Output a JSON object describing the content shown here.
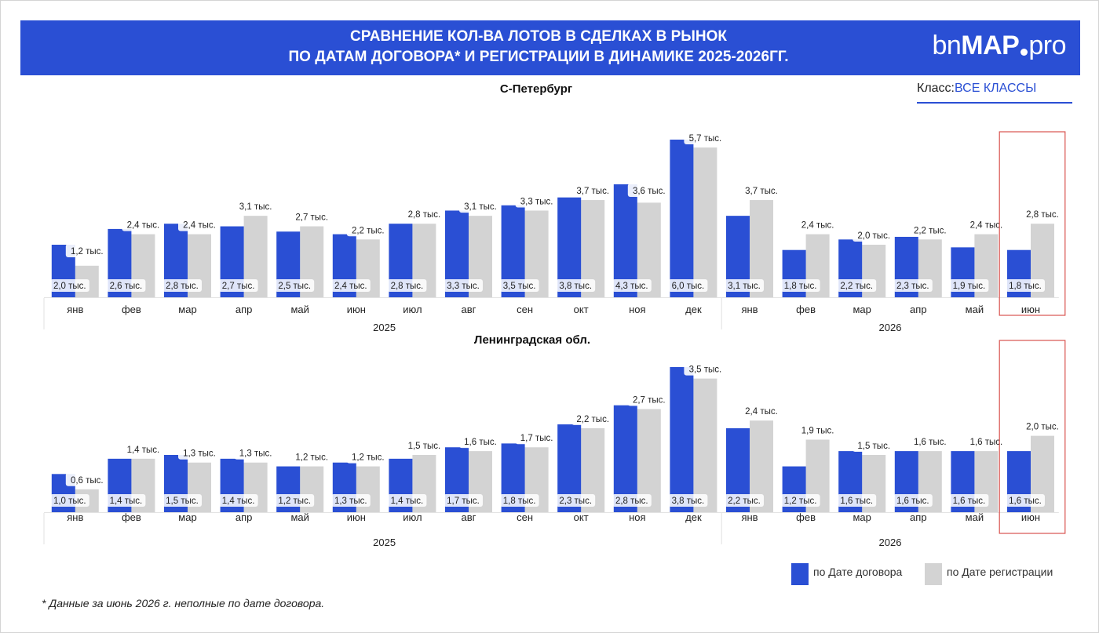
{
  "header": {
    "title_line1": "СРАВНЕНИЕ КОЛ-ВА ЛОТОВ В СДЕЛКАХ В РЫНОК",
    "title_line2": "ПО ДАТАМ ДОГОВОРА* И РЕГИСТРАЦИИ В ДИНАМИКЕ 2025-2026ГГ.",
    "logo_bn": "bn",
    "logo_map": "MAP",
    "logo_pro": "pro"
  },
  "filter": {
    "label": "Класс:",
    "value": "ВСЕ КЛАССЫ"
  },
  "legend": {
    "contract": "по Дате договора",
    "registration": "по Дате регистрации"
  },
  "footnote": "* Данные за июнь 2026 г. неполные по дате договора.",
  "colors": {
    "contract": "#2a4fd4",
    "registration": "#d3d3d3",
    "highlight": "#d9534f",
    "banner": "#2a4fd4"
  },
  "chart_data": [
    {
      "type": "bar",
      "title": "С-Петербург",
      "categories": [
        "янв",
        "фев",
        "мар",
        "апр",
        "май",
        "июн",
        "июл",
        "авг",
        "сен",
        "окт",
        "ноя",
        "дек",
        "янв",
        "фев",
        "мар",
        "апр",
        "май",
        "июн"
      ],
      "year_groups": [
        {
          "label": "2025",
          "count": 12
        },
        {
          "label": "2026",
          "count": 6
        }
      ],
      "highlight_category": 17,
      "series": [
        {
          "name": "по Дате договора",
          "values": [
            2.0,
            2.6,
            2.8,
            2.7,
            2.5,
            2.4,
            2.8,
            3.3,
            3.5,
            3.8,
            4.3,
            6.0,
            3.1,
            1.8,
            2.2,
            2.3,
            1.9,
            1.8
          ],
          "labels": [
            "2,0 тыс.",
            "2,6 тыс.",
            "2,8 тыс.",
            "2,7 тыс.",
            "2,5 тыс.",
            "2,4 тыс.",
            "2,8 тыс.",
            "3,3 тыс.",
            "3,5 тыс.",
            "3,8 тыс.",
            "4,3 тыс.",
            "6,0 тыс.",
            "3,1 тыс.",
            "1,8 тыс.",
            "2,2 тыс.",
            "2,3 тыс.",
            "1,9 тыс.",
            "1,8 тыс."
          ]
        },
        {
          "name": "по Дате регистрации",
          "values": [
            1.2,
            2.4,
            2.4,
            3.1,
            2.7,
            2.2,
            2.8,
            3.1,
            3.3,
            3.7,
            3.6,
            5.7,
            3.7,
            2.4,
            2.0,
            2.2,
            2.4,
            2.8
          ],
          "labels": [
            "1,2 тыс.",
            "2,4 тыс.",
            "2,4 тыс.",
            "3,1 тыс.",
            "2,7 тыс.",
            "2,2 тыс.",
            "2,8 тыс.",
            "3,1 тыс.",
            "3,3 тыс.",
            "3,7 тыс.",
            "3,6 тыс.",
            "5,7 тыс.",
            "3,7 тыс.",
            "2,4 тыс.",
            "2,0 тыс.",
            "2,2 тыс.",
            "2,4 тыс.",
            "2,8 тыс."
          ]
        }
      ],
      "ylim": [
        0,
        6.0
      ]
    },
    {
      "type": "bar",
      "title": "Ленинградская обл.",
      "categories": [
        "янв",
        "фев",
        "мар",
        "апр",
        "май",
        "июн",
        "июл",
        "авг",
        "сен",
        "окт",
        "ноя",
        "дек",
        "янв",
        "фев",
        "мар",
        "апр",
        "май",
        "июн"
      ],
      "year_groups": [
        {
          "label": "2025",
          "count": 12
        },
        {
          "label": "2026",
          "count": 6
        }
      ],
      "highlight_category": 17,
      "series": [
        {
          "name": "по Дате договора",
          "values": [
            1.0,
            1.4,
            1.5,
            1.4,
            1.2,
            1.3,
            1.4,
            1.7,
            1.8,
            2.3,
            2.8,
            3.8,
            2.2,
            1.2,
            1.6,
            1.6,
            1.6,
            1.6
          ],
          "labels": [
            "1,0 тыс.",
            "1,4 тыс.",
            "1,5 тыс.",
            "1,4 тыс.",
            "1,2 тыс.",
            "1,3 тыс.",
            "1,4 тыс.",
            "1,7 тыс.",
            "1,8 тыс.",
            "2,3 тыс.",
            "2,8 тыс.",
            "3,8 тыс.",
            "2,2 тыс.",
            "1,2 тыс.",
            "1,6 тыс.",
            "1,6 тыс.",
            "1,6 тыс.",
            "1,6 тыс."
          ]
        },
        {
          "name": "по Дате регистрации",
          "values": [
            0.6,
            1.4,
            1.3,
            1.3,
            1.2,
            1.2,
            1.5,
            1.6,
            1.7,
            2.2,
            2.7,
            3.5,
            2.4,
            1.9,
            1.5,
            1.6,
            1.6,
            2.0
          ],
          "labels": [
            "0,6 тыс.",
            "1,4 тыс.",
            "1,3 тыс.",
            "1,3 тыс.",
            "1,2 тыс.",
            "1,2 тыс.",
            "1,5 тыс.",
            "1,6 тыс.",
            "1,7 тыс.",
            "2,2 тыс.",
            "2,7 тыс.",
            "3,5 тыс.",
            "2,4 тыс.",
            "1,9 тыс.",
            "1,5 тыс.",
            "1,6 тыс.",
            "1,6 тыс.",
            "2,0 тыс."
          ]
        }
      ],
      "ylim": [
        0,
        3.8
      ]
    }
  ]
}
